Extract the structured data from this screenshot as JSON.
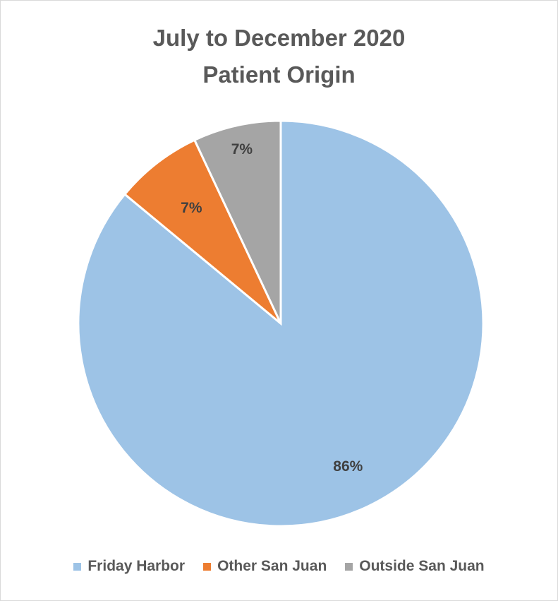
{
  "chart_data": {
    "type": "pie",
    "title": "July to December 2020",
    "subtitle": "Patient Origin",
    "slices": [
      {
        "label": "Friday Harbor",
        "value": 86,
        "display": "86%",
        "color": "#9dc3e6"
      },
      {
        "label": "Other San Juan",
        "value": 7,
        "display": "7%",
        "color": "#ed7d31"
      },
      {
        "label": "Outside San Juan",
        "value": 7,
        "display": "7%",
        "color": "#a5a5a5"
      }
    ],
    "legend_position": "bottom"
  }
}
